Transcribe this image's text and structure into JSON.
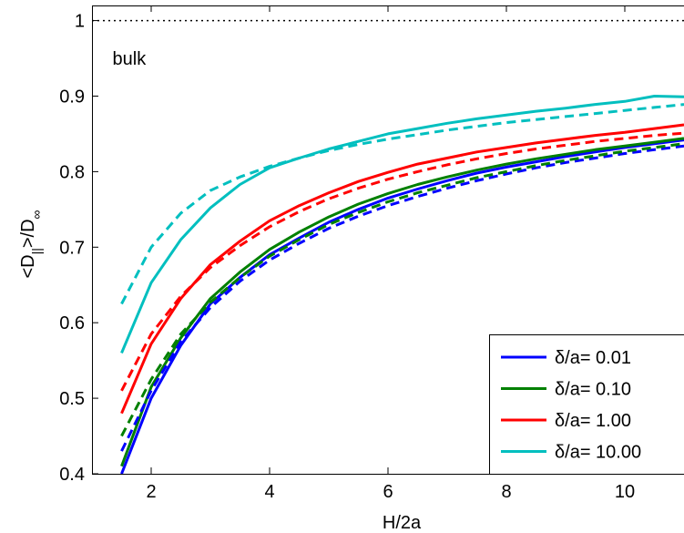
{
  "chart_data": {
    "type": "line",
    "title": "",
    "xlabel": "H/2a",
    "ylabel": "<D||>/D∞",
    "ylabel_parts": {
      "open": "<D",
      "sub": "||",
      "mid": ">/D",
      "sup": "∞"
    },
    "xlim": [
      1.0,
      11.0
    ],
    "ylim": [
      0.4,
      1.02
    ],
    "xticks": [
      2,
      4,
      6,
      8,
      10
    ],
    "xtick_labels": [
      "2",
      "4",
      "6",
      "8",
      "10"
    ],
    "yticks": [
      0.4,
      0.5,
      0.6,
      0.7,
      0.8,
      0.9,
      1.0
    ],
    "ytick_labels": [
      "0.4",
      "0.5",
      "0.6",
      "0.7",
      "0.8",
      "0.9",
      "1"
    ],
    "grid": false,
    "legend_position": "bottom-right",
    "annotations": [
      {
        "text": "bulk",
        "x": 1.5,
        "y": 0.985
      }
    ],
    "reference_line": {
      "y": 1.0,
      "style": "dotted",
      "color": "#000000"
    },
    "x": [
      1.5,
      2.0,
      2.5,
      3.0,
      3.5,
      4.0,
      4.5,
      5.0,
      5.5,
      6.0,
      6.5,
      7.0,
      7.5,
      8.0,
      8.5,
      9.0,
      9.5,
      10.0,
      10.5,
      11.0
    ],
    "series": [
      {
        "name": "δ/a= 0.01",
        "color": "#0000ff",
        "style": "solid",
        "values": [
          0.4,
          0.5,
          0.57,
          0.625,
          0.66,
          0.69,
          0.712,
          0.733,
          0.75,
          0.765,
          0.777,
          0.788,
          0.798,
          0.806,
          0.813,
          0.82,
          0.826,
          0.832,
          0.837,
          0.842
        ]
      },
      {
        "name": "δ/a= 0.10",
        "color": "#008000",
        "style": "solid",
        "values": [
          0.41,
          0.515,
          0.58,
          0.632,
          0.667,
          0.697,
          0.72,
          0.74,
          0.757,
          0.771,
          0.783,
          0.793,
          0.802,
          0.81,
          0.817,
          0.823,
          0.829,
          0.834,
          0.839,
          0.844
        ]
      },
      {
        "name": "δ/a= 1.00",
        "color": "#ff0000",
        "style": "solid",
        "values": [
          0.48,
          0.572,
          0.632,
          0.677,
          0.708,
          0.735,
          0.755,
          0.772,
          0.787,
          0.799,
          0.81,
          0.818,
          0.826,
          0.832,
          0.838,
          0.843,
          0.848,
          0.852,
          0.857,
          0.862
        ]
      },
      {
        "name": "δ/a= 10.00",
        "color": "#00bfbf",
        "style": "solid",
        "values": [
          0.56,
          0.653,
          0.71,
          0.752,
          0.783,
          0.805,
          0.818,
          0.83,
          0.84,
          0.85,
          0.857,
          0.864,
          0.87,
          0.875,
          0.88,
          0.884,
          0.889,
          0.893,
          0.9,
          0.899
        ]
      },
      {
        "name": "",
        "color": "#0000ff",
        "style": "dashed",
        "values": [
          0.43,
          0.51,
          0.575,
          0.62,
          0.655,
          0.683,
          0.705,
          0.725,
          0.741,
          0.755,
          0.767,
          0.778,
          0.788,
          0.797,
          0.805,
          0.812,
          0.818,
          0.824,
          0.829,
          0.834
        ]
      },
      {
        "name": "",
        "color": "#008000",
        "style": "dashed",
        "values": [
          0.45,
          0.525,
          0.585,
          0.627,
          0.66,
          0.688,
          0.71,
          0.73,
          0.746,
          0.76,
          0.772,
          0.782,
          0.792,
          0.8,
          0.808,
          0.815,
          0.821,
          0.827,
          0.832,
          0.837
        ]
      },
      {
        "name": "",
        "color": "#ff0000",
        "style": "dashed",
        "values": [
          0.51,
          0.585,
          0.635,
          0.673,
          0.702,
          0.727,
          0.747,
          0.764,
          0.778,
          0.79,
          0.8,
          0.809,
          0.817,
          0.824,
          0.83,
          0.835,
          0.84,
          0.844,
          0.848,
          0.851
        ]
      },
      {
        "name": "",
        "color": "#00bfbf",
        "style": "dashed",
        "values": [
          0.625,
          0.7,
          0.745,
          0.775,
          0.793,
          0.807,
          0.818,
          0.828,
          0.836,
          0.843,
          0.849,
          0.855,
          0.86,
          0.865,
          0.869,
          0.873,
          0.877,
          0.881,
          0.885,
          0.889
        ]
      }
    ]
  }
}
